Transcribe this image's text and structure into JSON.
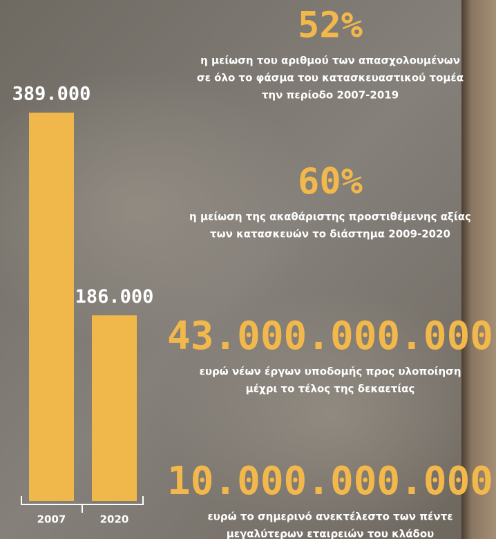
{
  "chart_data": {
    "type": "bar",
    "categories": [
      "2007",
      "2020"
    ],
    "values": [
      389000,
      186000
    ],
    "value_labels": [
      "389.000",
      "186.000"
    ],
    "color": "#f0b84a"
  },
  "stats": [
    {
      "figure": "52%",
      "lines": [
        "η μείωση του αριθμού των απασχολουμένων",
        "σε όλο το φάσμα του κατασκευαστικού τομέα",
        "την περίοδο 2007-2019"
      ]
    },
    {
      "figure": "60%",
      "lines": [
        "η μείωση της ακαθάριστης προστιθέμενης αξίας",
        "των κατασκευών το διάστημα 2009-2020"
      ]
    },
    {
      "figure": "43.000.000.000",
      "lines": [
        "ευρώ νέων έργων υποδομής προς υλοποίηση",
        "μέχρι το τέλος της δεκαετίας"
      ]
    },
    {
      "figure": "10.000.000.000",
      "lines": [
        "ευρώ το σημερινό ανεκτέλεστο των πέντε",
        "μεγαλύτερων εταιρειών του κλάδου"
      ]
    }
  ]
}
